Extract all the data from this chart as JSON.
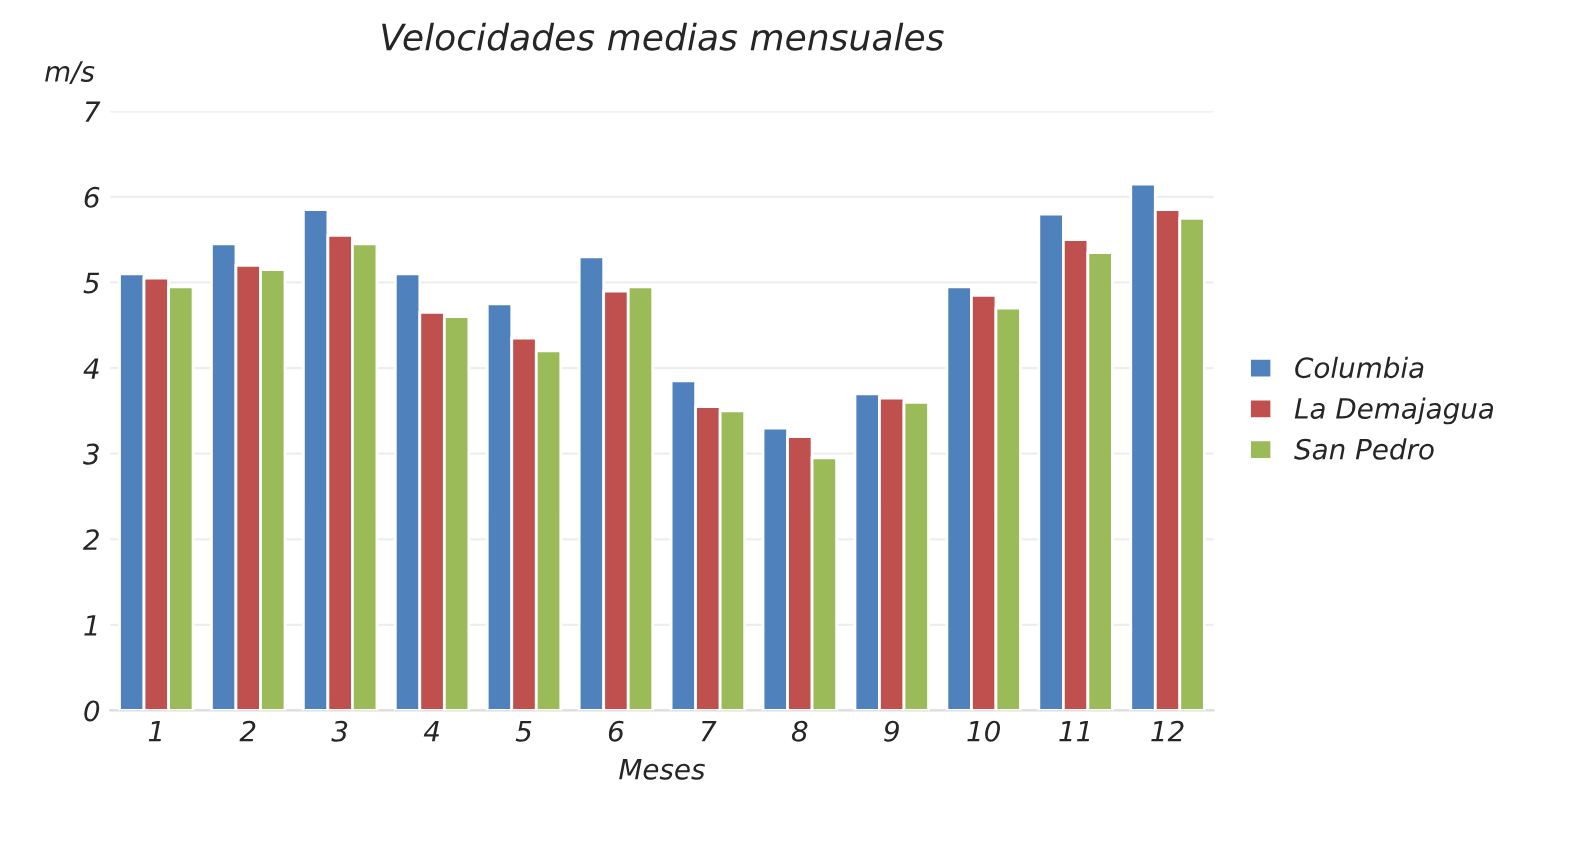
{
  "chart_data": {
    "type": "bar",
    "title": "Velocidades medias mensuales",
    "ylabel": "m/s",
    "xlabel": "Meses",
    "categories": [
      "1",
      "2",
      "3",
      "4",
      "5",
      "6",
      "7",
      "8",
      "9",
      "10",
      "11",
      "12"
    ],
    "series": [
      {
        "name": "Columbia",
        "color": "#4f81bd",
        "values": [
          5.1,
          5.45,
          5.85,
          5.1,
          4.75,
          5.3,
          3.85,
          3.3,
          3.7,
          4.95,
          5.8,
          6.15
        ]
      },
      {
        "name": "La Demajagua",
        "color": "#c0504d",
        "values": [
          5.05,
          5.2,
          5.55,
          4.65,
          4.35,
          4.9,
          3.55,
          3.2,
          3.65,
          4.85,
          5.5,
          5.85
        ]
      },
      {
        "name": "San Pedro",
        "color": "#9bbb59",
        "values": [
          4.95,
          5.15,
          5.45,
          4.6,
          4.2,
          4.95,
          3.5,
          2.95,
          3.6,
          4.7,
          5.35,
          5.75
        ]
      }
    ],
    "ylim": [
      0,
      7
    ],
    "yticks": [
      0,
      1,
      2,
      3,
      4,
      5,
      6,
      7
    ],
    "grid": "y",
    "legend": "right"
  }
}
